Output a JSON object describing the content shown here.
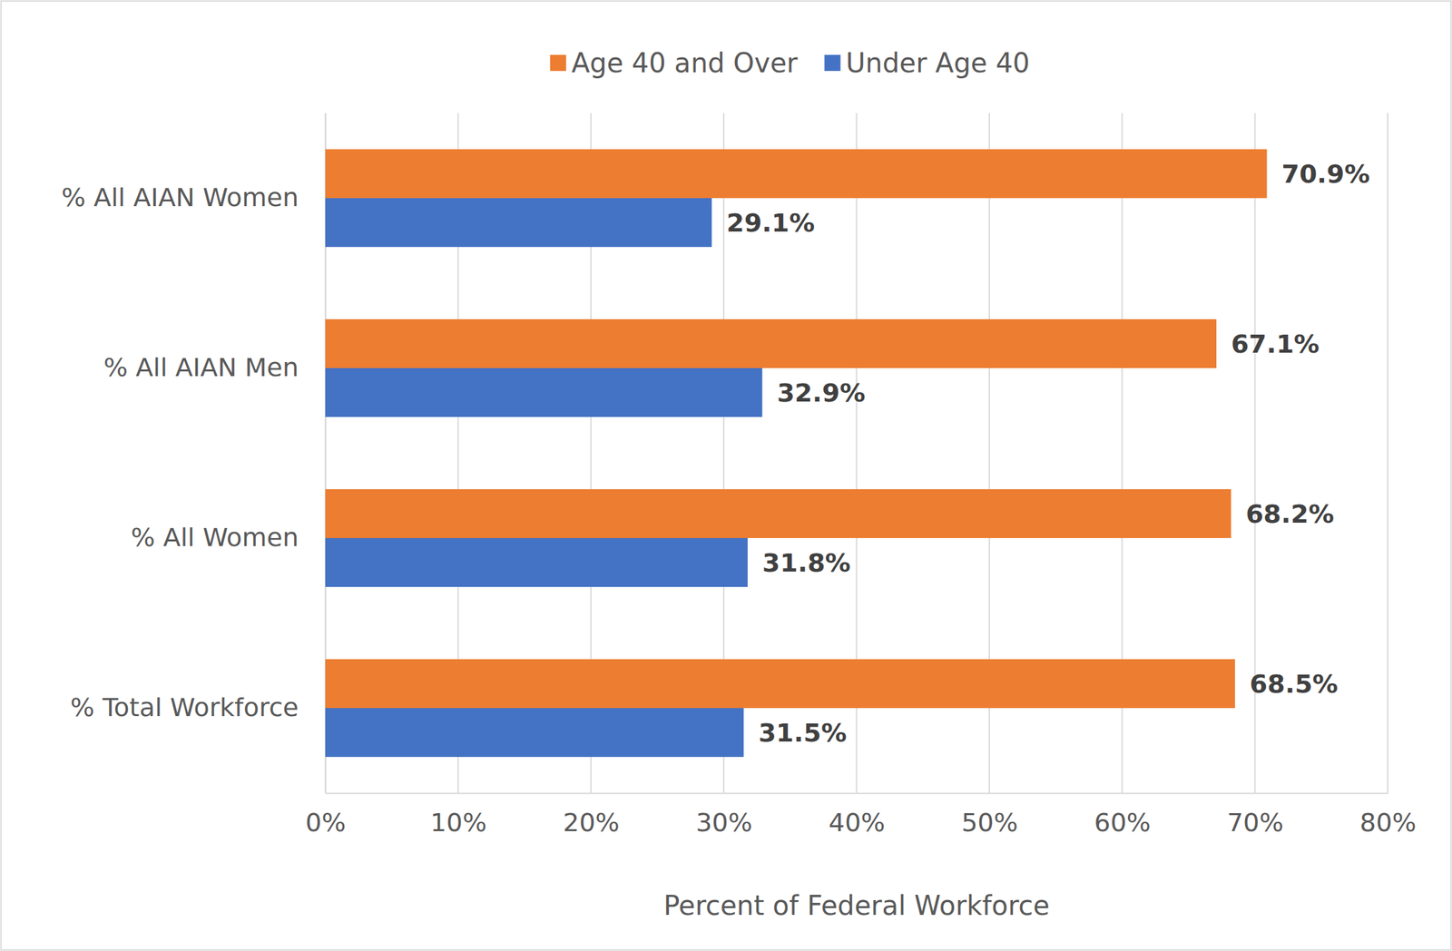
{
  "chart_data": {
    "type": "bar",
    "orientation": "horizontal",
    "categories": [
      "% All AIAN Women",
      "% All AIAN Men",
      "% All Women",
      "% Total Workforce"
    ],
    "series": [
      {
        "name": "Age 40 and Over",
        "color": "#ed7d31",
        "values": [
          70.9,
          67.1,
          68.2,
          68.5
        ],
        "value_labels": [
          "70.9%",
          "67.1%",
          "68.2%",
          "68.5%"
        ]
      },
      {
        "name": "Under Age 40",
        "color": "#4472c4",
        "values": [
          29.1,
          32.9,
          31.8,
          31.5
        ],
        "value_labels": [
          "29.1%",
          "32.9%",
          "31.8%",
          "31.5%"
        ]
      }
    ],
    "xlabel": "Percent of Federal Workforce",
    "xlim": [
      0,
      80
    ],
    "xticks": [
      {
        "value": 0,
        "label": "0%"
      },
      {
        "value": 10,
        "label": "10%"
      },
      {
        "value": 20,
        "label": "20%"
      },
      {
        "value": 30,
        "label": "30%"
      },
      {
        "value": 40,
        "label": "40%"
      },
      {
        "value": 50,
        "label": "50%"
      },
      {
        "value": 60,
        "label": "60%"
      },
      {
        "value": 70,
        "label": "70%"
      },
      {
        "value": 80,
        "label": "80%"
      }
    ],
    "grid": true,
    "legend": "top",
    "data_labels": true
  }
}
